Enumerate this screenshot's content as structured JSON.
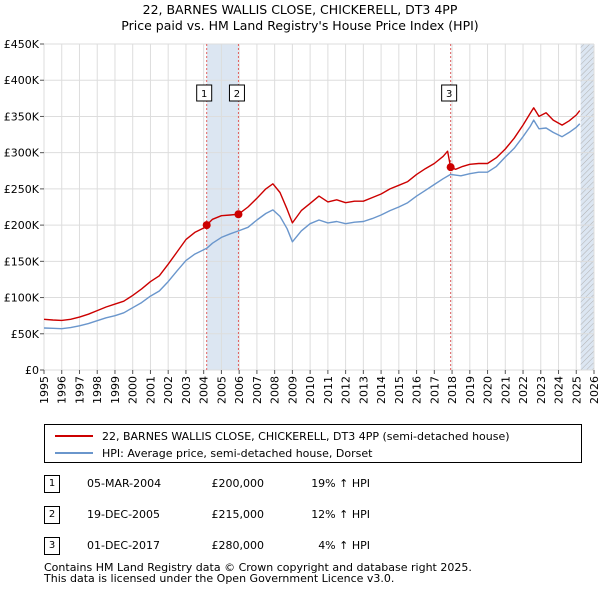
{
  "title": {
    "line1": "22, BARNES WALLIS CLOSE, CHICKERELL, DT3 4PP",
    "line2": "Price paid vs. HM Land Registry's House Price Index (HPI)"
  },
  "chart_data": {
    "type": "line",
    "title": "22, BARNES WALLIS CLOSE, CHICKERELL, DT3 4PP — Price paid vs. HM Land Registry's House Price Index (HPI)",
    "xlabel": "",
    "ylabel": "",
    "xlim": [
      1995,
      2026
    ],
    "ylim": [
      0,
      450000
    ],
    "x_ticks": [
      "1995",
      "1996",
      "1997",
      "1998",
      "1999",
      "2000",
      "2001",
      "2002",
      "2003",
      "2004",
      "2005",
      "2006",
      "2007",
      "2008",
      "2009",
      "2010",
      "2011",
      "2012",
      "2013",
      "2014",
      "2015",
      "2016",
      "2017",
      "2018",
      "2019",
      "2020",
      "2021",
      "2022",
      "2023",
      "2024",
      "2025",
      "2026"
    ],
    "y_ticks": [
      {
        "value": 0,
        "label": "£0"
      },
      {
        "value": 50000,
        "label": "£50K"
      },
      {
        "value": 100000,
        "label": "£100K"
      },
      {
        "value": 150000,
        "label": "£150K"
      },
      {
        "value": 200000,
        "label": "£200K"
      },
      {
        "value": 250000,
        "label": "£250K"
      },
      {
        "value": 300000,
        "label": "£300K"
      },
      {
        "value": 350000,
        "label": "£350K"
      },
      {
        "value": 400000,
        "label": "£400K"
      },
      {
        "value": 450000,
        "label": "£450K"
      }
    ],
    "grid": true,
    "colors": {
      "property": "#cc0000",
      "hpi": "#6a96cc",
      "shade": "#dce6f2",
      "vline": "#e06060"
    },
    "series": [
      {
        "name": "22, BARNES WALLIS CLOSE, CHICKERELL, DT3 4PP (semi-detached house)",
        "color": "#cc0000",
        "points": [
          [
            1995.0,
            70000
          ],
          [
            1995.5,
            69000
          ],
          [
            1996.0,
            68500
          ],
          [
            1996.5,
            70000
          ],
          [
            1997.0,
            73000
          ],
          [
            1997.5,
            77000
          ],
          [
            1998.0,
            82000
          ],
          [
            1998.5,
            87000
          ],
          [
            1999.0,
            91000
          ],
          [
            1999.5,
            95000
          ],
          [
            2000.0,
            103000
          ],
          [
            2000.5,
            112000
          ],
          [
            2001.0,
            122000
          ],
          [
            2001.5,
            130000
          ],
          [
            2002.0,
            146000
          ],
          [
            2002.5,
            163000
          ],
          [
            2003.0,
            180000
          ],
          [
            2003.5,
            190000
          ],
          [
            2004.0,
            196000
          ],
          [
            2004.17,
            200000
          ],
          [
            2004.5,
            208000
          ],
          [
            2005.0,
            213000
          ],
          [
            2005.5,
            214000
          ],
          [
            2005.96,
            215000
          ],
          [
            2006.5,
            225000
          ],
          [
            2007.0,
            237000
          ],
          [
            2007.5,
            250000
          ],
          [
            2007.9,
            257000
          ],
          [
            2008.3,
            245000
          ],
          [
            2008.7,
            222000
          ],
          [
            2009.0,
            203000
          ],
          [
            2009.5,
            220000
          ],
          [
            2010.0,
            230000
          ],
          [
            2010.5,
            240000
          ],
          [
            2011.0,
            232000
          ],
          [
            2011.5,
            235000
          ],
          [
            2012.0,
            231000
          ],
          [
            2012.5,
            233000
          ],
          [
            2013.0,
            233000
          ],
          [
            2013.5,
            238000
          ],
          [
            2014.0,
            243000
          ],
          [
            2014.5,
            250000
          ],
          [
            2015.0,
            255000
          ],
          [
            2015.5,
            260000
          ],
          [
            2016.0,
            270000
          ],
          [
            2016.5,
            278000
          ],
          [
            2017.0,
            285000
          ],
          [
            2017.5,
            295000
          ],
          [
            2017.75,
            302000
          ],
          [
            2017.92,
            280000
          ],
          [
            2018.2,
            277000
          ],
          [
            2018.6,
            281000
          ],
          [
            2019.0,
            284000
          ],
          [
            2019.5,
            285000
          ],
          [
            2020.0,
            285000
          ],
          [
            2020.5,
            293000
          ],
          [
            2021.0,
            305000
          ],
          [
            2021.5,
            320000
          ],
          [
            2022.0,
            338000
          ],
          [
            2022.4,
            354000
          ],
          [
            2022.6,
            362000
          ],
          [
            2022.9,
            350000
          ],
          [
            2023.3,
            355000
          ],
          [
            2023.7,
            345000
          ],
          [
            2024.2,
            338000
          ],
          [
            2024.6,
            344000
          ],
          [
            2025.0,
            352000
          ],
          [
            2025.2,
            358000
          ]
        ]
      },
      {
        "name": "HPI: Average price, semi-detached house, Dorset",
        "color": "#6a96cc",
        "points": [
          [
            1995.0,
            58000
          ],
          [
            1995.5,
            57500
          ],
          [
            1996.0,
            57000
          ],
          [
            1996.5,
            58500
          ],
          [
            1997.0,
            61000
          ],
          [
            1997.5,
            64000
          ],
          [
            1998.0,
            68000
          ],
          [
            1998.5,
            72000
          ],
          [
            1999.0,
            75000
          ],
          [
            1999.5,
            79000
          ],
          [
            2000.0,
            86000
          ],
          [
            2000.5,
            93000
          ],
          [
            2001.0,
            102000
          ],
          [
            2001.5,
            109000
          ],
          [
            2002.0,
            122000
          ],
          [
            2002.5,
            137000
          ],
          [
            2003.0,
            151000
          ],
          [
            2003.5,
            160000
          ],
          [
            2004.0,
            166000
          ],
          [
            2004.17,
            168000
          ],
          [
            2004.5,
            175000
          ],
          [
            2005.0,
            183000
          ],
          [
            2005.5,
            188000
          ],
          [
            2005.96,
            192000
          ],
          [
            2006.5,
            197000
          ],
          [
            2007.0,
            207000
          ],
          [
            2007.5,
            216000
          ],
          [
            2007.9,
            221000
          ],
          [
            2008.3,
            212000
          ],
          [
            2008.7,
            195000
          ],
          [
            2009.0,
            177000
          ],
          [
            2009.5,
            192000
          ],
          [
            2010.0,
            202000
          ],
          [
            2010.5,
            207000
          ],
          [
            2011.0,
            203000
          ],
          [
            2011.5,
            205000
          ],
          [
            2012.0,
            202000
          ],
          [
            2012.5,
            204000
          ],
          [
            2013.0,
            205000
          ],
          [
            2013.5,
            209000
          ],
          [
            2014.0,
            214000
          ],
          [
            2014.5,
            220000
          ],
          [
            2015.0,
            225000
          ],
          [
            2015.5,
            231000
          ],
          [
            2016.0,
            240000
          ],
          [
            2016.5,
            248000
          ],
          [
            2017.0,
            256000
          ],
          [
            2017.5,
            264000
          ],
          [
            2017.92,
            270000
          ],
          [
            2018.5,
            268000
          ],
          [
            2019.0,
            271000
          ],
          [
            2019.5,
            273000
          ],
          [
            2020.0,
            273000
          ],
          [
            2020.5,
            281000
          ],
          [
            2021.0,
            294000
          ],
          [
            2021.5,
            306000
          ],
          [
            2022.0,
            322000
          ],
          [
            2022.4,
            336000
          ],
          [
            2022.6,
            345000
          ],
          [
            2022.9,
            333000
          ],
          [
            2023.3,
            334000
          ],
          [
            2023.7,
            328000
          ],
          [
            2024.2,
            322000
          ],
          [
            2024.6,
            328000
          ],
          [
            2025.0,
            335000
          ],
          [
            2025.2,
            340000
          ]
        ]
      }
    ],
    "shaded_ranges": [
      [
        2004.17,
        2005.96
      ],
      [
        2025.25,
        2026.0
      ]
    ],
    "shaded_hatch_ranges": [
      [
        2025.25,
        2026.0
      ]
    ],
    "markers": [
      {
        "label": "1",
        "x": 2004.17,
        "y": 200000
      },
      {
        "label": "2",
        "x": 2005.96,
        "y": 215000
      },
      {
        "label": "3",
        "x": 2017.92,
        "y": 280000
      }
    ]
  },
  "legend": {
    "property_label": "22, BARNES WALLIS CLOSE, CHICKERELL, DT3 4PP (semi-detached house)",
    "hpi_label": "HPI: Average price, semi-detached house, Dorset"
  },
  "transactions": [
    {
      "num": "1",
      "date": "05-MAR-2004",
      "price": "£200,000",
      "hpi": "19% ↑ HPI"
    },
    {
      "num": "2",
      "date": "19-DEC-2005",
      "price": "£215,000",
      "hpi": "12% ↑ HPI"
    },
    {
      "num": "3",
      "date": "01-DEC-2017",
      "price": "£280,000",
      "hpi": "4% ↑ HPI"
    }
  ],
  "footer": {
    "line1": "Contains HM Land Registry data © Crown copyright and database right 2025.",
    "line2": "This data is licensed under the Open Government Licence v3.0."
  }
}
